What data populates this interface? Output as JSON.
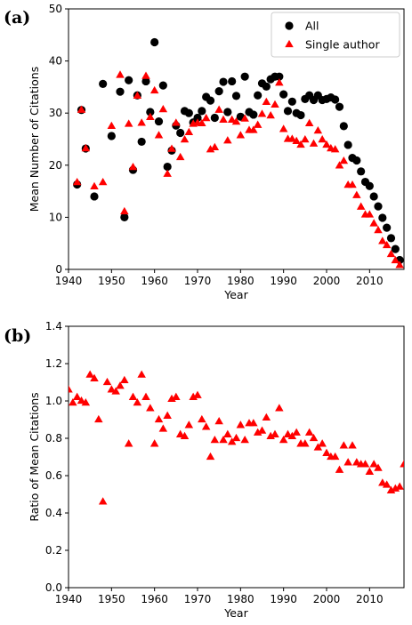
{
  "colors": {
    "all": "#000000",
    "single": "#ff0000"
  },
  "chart_data": [
    {
      "type": "scatter",
      "panel_label": "(a)",
      "xlabel": "Year",
      "ylabel": "Mean Number of Citations",
      "xlim": [
        1940,
        2018
      ],
      "ylim": [
        0,
        50
      ],
      "xticks": [
        "1940",
        "1950",
        "1960",
        "1970",
        "1980",
        "1990",
        "2000",
        "2010"
      ],
      "yticks": [
        "0",
        "10",
        "20",
        "30",
        "40",
        "50"
      ],
      "grid": false,
      "legend_position": "top-right",
      "series": [
        {
          "name": "All",
          "marker": "circle",
          "color": "#000000",
          "x": [
            1942,
            1943,
            1944,
            1946,
            1948,
            1950,
            1952,
            1953,
            1954,
            1955,
            1956,
            1957,
            1958,
            1959,
            1960,
            1961,
            1962,
            1963,
            1964,
            1965,
            1966,
            1967,
            1968,
            1969,
            1970,
            1971,
            1972,
            1973,
            1974,
            1975,
            1976,
            1977,
            1978,
            1979,
            1980,
            1981,
            1982,
            1983,
            1984,
            1985,
            1986,
            1987,
            1988,
            1989,
            1990,
            1991,
            1992,
            1993,
            1994,
            1995,
            1996,
            1997,
            1998,
            1999,
            2000,
            2001,
            2002,
            2003,
            2004,
            2005,
            2006,
            2007,
            2008,
            2009,
            2010,
            2011,
            2012,
            2013,
            2014,
            2015,
            2016,
            2017
          ],
          "y": [
            16.3,
            30.6,
            23.2,
            14.0,
            35.6,
            25.6,
            34.1,
            10.0,
            36.3,
            19.1,
            33.4,
            24.5,
            36.1,
            30.2,
            43.6,
            28.4,
            35.3,
            19.7,
            22.8,
            27.6,
            26.2,
            30.4,
            30.0,
            28.2,
            29.1,
            30.4,
            33.1,
            32.4,
            29.1,
            34.2,
            36.0,
            30.2,
            36.1,
            33.3,
            29.3,
            37.0,
            30.2,
            29.7,
            33.4,
            35.7,
            35.1,
            36.5,
            37.0,
            37.0,
            33.6,
            30.4,
            32.2,
            30.0,
            29.6,
            32.7,
            33.4,
            32.5,
            33.4,
            32.5,
            32.7,
            33.0,
            32.6,
            31.2,
            27.5,
            23.9,
            21.4,
            20.9,
            18.8,
            16.8,
            16.0,
            14.0,
            12.1,
            9.9,
            8.0,
            6.0,
            3.9,
            1.8
          ]
        },
        {
          "name": "Single author",
          "marker": "triangle",
          "color": "#ff0000",
          "x": [
            1942,
            1943,
            1944,
            1946,
            1948,
            1950,
            1952,
            1953,
            1954,
            1955,
            1956,
            1957,
            1958,
            1959,
            1960,
            1961,
            1962,
            1963,
            1964,
            1965,
            1966,
            1967,
            1968,
            1969,
            1970,
            1971,
            1972,
            1973,
            1974,
            1975,
            1976,
            1977,
            1978,
            1979,
            1980,
            1981,
            1982,
            1983,
            1984,
            1985,
            1986,
            1987,
            1988,
            1989,
            1990,
            1991,
            1992,
            1993,
            1994,
            1995,
            1996,
            1997,
            1998,
            1999,
            2000,
            2001,
            2002,
            2003,
            2004,
            2005,
            2006,
            2007,
            2008,
            2009,
            2010,
            2011,
            2012,
            2013,
            2014,
            2015,
            2016,
            2017
          ],
          "y": [
            16.7,
            30.6,
            23.2,
            15.9,
            16.7,
            27.5,
            37.3,
            11.1,
            27.9,
            19.6,
            33.3,
            28.1,
            37.1,
            29.2,
            34.3,
            25.7,
            30.7,
            18.3,
            23.1,
            28.1,
            21.5,
            24.9,
            26.3,
            27.9,
            28.1,
            28.0,
            29.0,
            23.0,
            23.4,
            30.6,
            28.7,
            24.7,
            28.7,
            28.3,
            25.7,
            28.9,
            26.7,
            26.7,
            27.7,
            29.8,
            32.1,
            29.5,
            31.6,
            35.8,
            26.9,
            25.0,
            25.0,
            24.6,
            23.9,
            24.9,
            28.0,
            24.1,
            26.6,
            24.9,
            23.9,
            23.2,
            23.0,
            19.9,
            20.8,
            16.2,
            16.2,
            14.2,
            12.0,
            10.5,
            10.5,
            8.8,
            7.5,
            5.4,
            4.6,
            2.9,
            1.7,
            0.8
          ]
        }
      ]
    },
    {
      "type": "scatter",
      "panel_label": "(b)",
      "xlabel": "Year",
      "ylabel": "Ratio of Mean Citations",
      "xlim": [
        1940,
        2018
      ],
      "ylim": [
        0.0,
        1.4
      ],
      "xticks": [
        "1940",
        "1950",
        "1960",
        "1970",
        "1980",
        "1990",
        "2000",
        "2010"
      ],
      "yticks": [
        "0.0",
        "0.2",
        "0.4",
        "0.6",
        "0.8",
        "1.0",
        "1.2",
        "1.4"
      ],
      "grid": false,
      "series": [
        {
          "marker": "triangle",
          "color": "#ff0000",
          "x": [
            1940,
            1941,
            1942,
            1943,
            1944,
            1945,
            1946,
            1947,
            1948,
            1949,
            1950,
            1951,
            1952,
            1953,
            1954,
            1955,
            1956,
            1957,
            1958,
            1959,
            1960,
            1961,
            1962,
            1963,
            1964,
            1965,
            1966,
            1967,
            1968,
            1969,
            1970,
            1971,
            1972,
            1973,
            1974,
            1975,
            1976,
            1977,
            1978,
            1979,
            1980,
            1981,
            1982,
            1983,
            1984,
            1985,
            1986,
            1987,
            1988,
            1989,
            1990,
            1991,
            1992,
            1993,
            1994,
            1995,
            1996,
            1997,
            1998,
            1999,
            2000,
            2001,
            2002,
            2003,
            2004,
            2005,
            2006,
            2007,
            2008,
            2009,
            2010,
            2011,
            2012,
            2013,
            2014,
            2015,
            2016,
            2017,
            2018
          ],
          "y": [
            1.06,
            0.99,
            1.02,
            1.0,
            0.99,
            1.14,
            1.12,
            0.9,
            0.46,
            1.1,
            1.06,
            1.05,
            1.08,
            1.11,
            0.77,
            1.02,
            0.99,
            1.14,
            1.02,
            0.96,
            0.77,
            0.9,
            0.85,
            0.92,
            1.01,
            1.02,
            0.82,
            0.81,
            0.87,
            1.02,
            1.03,
            0.9,
            0.86,
            0.7,
            0.79,
            0.89,
            0.79,
            0.82,
            0.78,
            0.8,
            0.87,
            0.79,
            0.88,
            0.88,
            0.83,
            0.84,
            0.91,
            0.81,
            0.82,
            0.96,
            0.79,
            0.82,
            0.81,
            0.83,
            0.77,
            0.77,
            0.83,
            0.8,
            0.75,
            0.77,
            0.72,
            0.7,
            0.7,
            0.63,
            0.76,
            0.67,
            0.76,
            0.67,
            0.66,
            0.66,
            0.62,
            0.66,
            0.64,
            0.56,
            0.55,
            0.52,
            0.53,
            0.54,
            0.66
          ]
        }
      ]
    }
  ]
}
